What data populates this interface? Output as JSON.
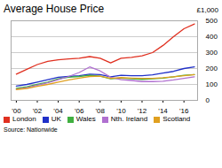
{
  "chart_data": {
    "type": "line",
    "title": "Average House Price",
    "ylabel": "£1,000",
    "source": "Source: Nationwide",
    "x": [
      2000,
      2001,
      2002,
      2003,
      2004,
      2005,
      2006,
      2007,
      2008,
      2009,
      2010,
      2011,
      2012,
      2013,
      2014,
      2015,
      2016,
      2017
    ],
    "series": [
      {
        "name": "London",
        "color": "#e03020",
        "values": [
          165,
          195,
          225,
          245,
          255,
          260,
          265,
          275,
          265,
          235,
          265,
          270,
          280,
          300,
          345,
          400,
          450,
          480
        ]
      },
      {
        "name": "UK",
        "color": "#2030c8",
        "values": [
          90,
          100,
          115,
          130,
          145,
          150,
          155,
          165,
          162,
          148,
          158,
          155,
          155,
          160,
          172,
          182,
          200,
          210
        ]
      },
      {
        "name": "Wales",
        "color": "#40b040",
        "values": [
          75,
          85,
          100,
          115,
          135,
          145,
          150,
          158,
          152,
          135,
          140,
          135,
          132,
          135,
          140,
          148,
          158,
          162
        ]
      },
      {
        "name": "Nth. Ireland",
        "color": "#b070d0",
        "values": [
          70,
          80,
          95,
          110,
          130,
          150,
          175,
          210,
          185,
          145,
          130,
          125,
          118,
          118,
          120,
          128,
          138,
          148
        ]
      },
      {
        "name": "Scotland",
        "color": "#e0a020",
        "values": [
          68,
          75,
          88,
          100,
          115,
          128,
          140,
          150,
          152,
          138,
          143,
          140,
          138,
          138,
          142,
          148,
          155,
          162
        ]
      }
    ],
    "xlim": [
      1999.5,
      2017.3
    ],
    "xticks": [
      {
        "value": 2000,
        "label": "'00"
      },
      {
        "value": 2002,
        "label": "'02"
      },
      {
        "value": 2004,
        "label": "'04"
      },
      {
        "value": 2006,
        "label": "'06"
      },
      {
        "value": 2008,
        "label": "'08"
      },
      {
        "value": 2010,
        "label": "'10"
      },
      {
        "value": 2012,
        "label": "'12"
      },
      {
        "value": 2014,
        "label": "'14"
      },
      {
        "value": 2016,
        "label": "'16"
      }
    ],
    "ylim": [
      0,
      500
    ],
    "yticks": [
      0,
      100,
      200,
      300,
      400,
      500
    ],
    "grid": true,
    "legend": "bottom"
  }
}
